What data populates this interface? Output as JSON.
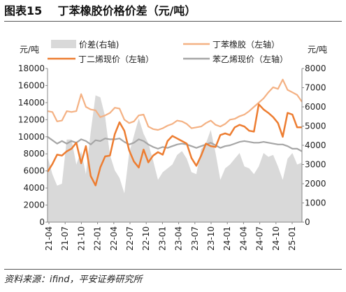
{
  "title_num": "图表15",
  "title_text": "丁苯橡胶价格价差（元/吨）",
  "source": "资料来源：ifind，平安证券研究所",
  "chart_data": {
    "type": "line",
    "left_unit": "元/吨",
    "right_unit": "元/吨",
    "y_left": {
      "min": 0,
      "max": 18000,
      "ticks": [
        0,
        2000,
        4000,
        6000,
        8000,
        10000,
        12000,
        14000,
        16000,
        18000
      ]
    },
    "y_right": {
      "min": 0,
      "max": 8000,
      "ticks": [
        0,
        1000,
        2000,
        3000,
        4000,
        5000,
        6000,
        7000,
        8000
      ]
    },
    "x_ticks": [
      "21-04",
      "21-07",
      "21-10",
      "22-01",
      "22-04",
      "22-07",
      "22-10",
      "23-01",
      "23-04",
      "23-07",
      "23-10",
      "24-01",
      "24-04",
      "24-07",
      "24-10",
      "25-01"
    ],
    "colors": {
      "spread": "#d9d9d9",
      "sbr": "#f4b183",
      "bd": "#ed7d31",
      "sm": "#a6a6a6"
    },
    "series": [
      {
        "name": "价差(右轴)",
        "axis": "right",
        "kind": "area",
        "values": [
          3400,
          2500,
          1900,
          2000,
          4300,
          4300,
          3000,
          3700,
          2500,
          4700,
          6600,
          6500,
          5500,
          3500,
          2700,
          2300,
          1500,
          3600,
          4500,
          5400,
          4600,
          4100,
          3200,
          2200,
          2600,
          2800,
          3000,
          3500,
          3700,
          3300,
          2600,
          2500,
          3800,
          4100,
          4800,
          3600,
          2200,
          2800,
          3000,
          3300,
          3600,
          2900,
          2800,
          2500,
          2900,
          3600,
          3400,
          3500,
          2900,
          2200,
          3300,
          3600,
          3000,
          3100
        ]
      },
      {
        "name": "丁苯橡胶（左轴）",
        "axis": "left",
        "kind": "line",
        "values": [
          13000,
          12900,
          11800,
          11900,
          13000,
          12900,
          13000,
          15000,
          13500,
          13200,
          13100,
          12300,
          12500,
          12800,
          13400,
          13300,
          12000,
          11600,
          11800,
          12500,
          12600,
          11200,
          10900,
          10800,
          11000,
          11300,
          11500,
          11900,
          11800,
          11500,
          11000,
          11100,
          11200,
          11600,
          11900,
          11400,
          11200,
          11500,
          12000,
          12100,
          12400,
          12600,
          13000,
          13500,
          14000,
          14500,
          15200,
          15800,
          15600,
          16700,
          15500,
          15200,
          14900,
          14100
        ]
      },
      {
        "name": "丁二烯现价（左轴）",
        "axis": "left",
        "kind": "line",
        "values": [
          5900,
          6800,
          7900,
          7800,
          8300,
          8600,
          9300,
          6900,
          8900,
          5400,
          4300,
          6400,
          7700,
          7800,
          10300,
          11700,
          10700,
          8400,
          7100,
          6400,
          8500,
          7000,
          7800,
          8200,
          7900,
          9500,
          10100,
          9800,
          9500,
          9200,
          7500,
          6600,
          7800,
          9200,
          8900,
          8800,
          10200,
          10400,
          10200,
          11100,
          11400,
          11200,
          10700,
          10600,
          13800,
          13200,
          12800,
          12300,
          11600,
          10000,
          12800,
          12600,
          11100,
          11100
        ]
      },
      {
        "name": "苯乙烯现价（左轴）",
        "axis": "left",
        "kind": "line",
        "values": [
          10000,
          9600,
          9200,
          9500,
          9200,
          9500,
          9300,
          9700,
          9500,
          9100,
          9600,
          9500,
          9800,
          9700,
          9700,
          9800,
          9400,
          9100,
          9300,
          9700,
          9500,
          9100,
          8800,
          8600,
          8800,
          8700,
          8900,
          9100,
          9200,
          9100,
          8900,
          8700,
          8900,
          9100,
          9300,
          9000,
          8700,
          8900,
          9000,
          9200,
          9400,
          9500,
          9400,
          9300,
          9300,
          9400,
          9300,
          9200,
          9100,
          9100,
          8900,
          8600,
          8600,
          8300
        ]
      }
    ]
  }
}
